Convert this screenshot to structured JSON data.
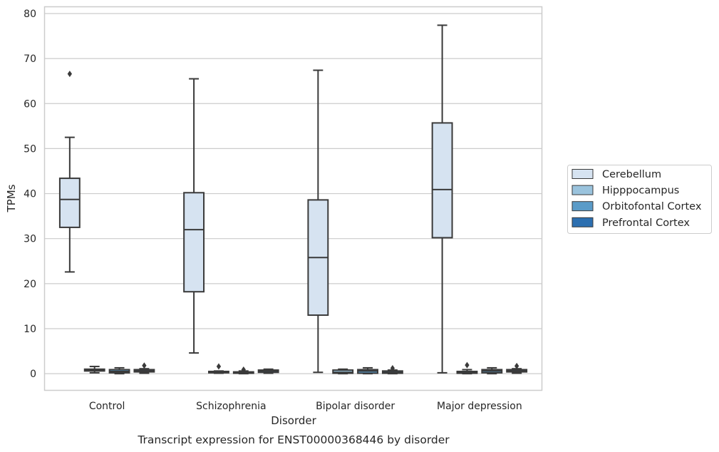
{
  "chart_data": {
    "type": "box",
    "xlabel": "Disorder",
    "ylabel": "TPMs",
    "caption": "Transcript expression for ENST00000368446 by disorder",
    "ylim": [
      -3.7,
      81.5
    ],
    "yticks": [
      0,
      10,
      20,
      30,
      40,
      50,
      60,
      70,
      80
    ],
    "grid": true,
    "legend_position": "right",
    "categories": [
      "Control",
      "Schizophrenia",
      "Bipolar disorder",
      "Major depression"
    ],
    "series": [
      {
        "name": "Cerebellum",
        "color": "#d6e3f1",
        "boxes": [
          {
            "whisker_low": 22.6,
            "q1": 32.5,
            "median": 38.7,
            "q3": 43.4,
            "whisker_high": 52.5,
            "outliers": [
              66.6
            ]
          },
          {
            "whisker_low": 4.6,
            "q1": 18.2,
            "median": 32.0,
            "q3": 40.2,
            "whisker_high": 65.5,
            "outliers": []
          },
          {
            "whisker_low": 0.3,
            "q1": 13.0,
            "median": 25.8,
            "q3": 38.6,
            "whisker_high": 67.4,
            "outliers": []
          },
          {
            "whisker_low": 0.2,
            "q1": 30.2,
            "median": 40.9,
            "q3": 55.7,
            "whisker_high": 77.4,
            "outliers": []
          }
        ]
      },
      {
        "name": "Hipppocampus",
        "color": "#9ac3dd",
        "boxes": [
          {
            "whisker_low": 0.2,
            "q1": 0.6,
            "median": 0.8,
            "q3": 1.0,
            "whisker_high": 1.6,
            "outliers": []
          },
          {
            "whisker_low": 0.1,
            "q1": 0.2,
            "median": 0.3,
            "q3": 0.5,
            "whisker_high": 0.6,
            "outliers": [
              1.6
            ]
          },
          {
            "whisker_low": 0.0,
            "q1": 0.1,
            "median": 0.3,
            "q3": 0.8,
            "whisker_high": 1.0,
            "outliers": []
          },
          {
            "whisker_low": 0.0,
            "q1": 0.1,
            "median": 0.2,
            "q3": 0.5,
            "whisker_high": 0.9,
            "outliers": [
              1.9
            ]
          }
        ]
      },
      {
        "name": "Orbitofontal Cortex",
        "color": "#5a9bc8",
        "boxes": [
          {
            "whisker_low": 0.0,
            "q1": 0.2,
            "median": 0.5,
            "q3": 0.9,
            "whisker_high": 1.3,
            "outliers": []
          },
          {
            "whisker_low": 0.0,
            "q1": 0.1,
            "median": 0.2,
            "q3": 0.4,
            "whisker_high": 0.6,
            "outliers": [
              0.9
            ]
          },
          {
            "whisker_low": 0.0,
            "q1": 0.1,
            "median": 0.6,
            "q3": 0.9,
            "whisker_high": 1.3,
            "outliers": []
          },
          {
            "whisker_low": 0.0,
            "q1": 0.2,
            "median": 0.6,
            "q3": 0.9,
            "whisker_high": 1.3,
            "outliers": []
          }
        ]
      },
      {
        "name": "Prefrontal Cortex",
        "color": "#2c6fb0",
        "boxes": [
          {
            "whisker_low": 0.1,
            "q1": 0.4,
            "median": 0.6,
            "q3": 0.9,
            "whisker_high": 1.1,
            "outliers": [
              1.8
            ]
          },
          {
            "whisker_low": 0.1,
            "q1": 0.3,
            "median": 0.6,
            "q3": 0.8,
            "whisker_high": 1.0,
            "outliers": []
          },
          {
            "whisker_low": 0.0,
            "q1": 0.1,
            "median": 0.3,
            "q3": 0.6,
            "whisker_high": 0.8,
            "outliers": [
              1.2
            ]
          },
          {
            "whisker_low": 0.1,
            "q1": 0.4,
            "median": 0.6,
            "q3": 0.9,
            "whisker_high": 1.1,
            "outliers": [
              1.7
            ]
          }
        ]
      }
    ]
  }
}
